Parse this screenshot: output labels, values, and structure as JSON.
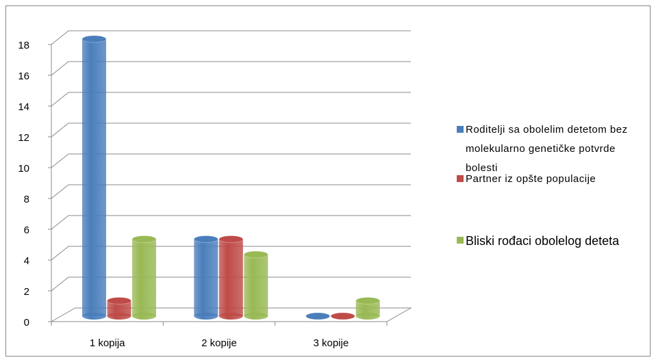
{
  "chart_data": {
    "type": "bar3d",
    "categories": [
      "1 kopija",
      "2 kopije",
      "3 kopije"
    ],
    "series": [
      {
        "name": "Roditelji sa obolelim detetom bez molekularno genetičke potvrde bolesti",
        "color": "#4a7ebb",
        "values": [
          18,
          5,
          0
        ]
      },
      {
        "name": "Partner iz opšte populacije",
        "color": "#be4b48",
        "values": [
          1,
          5,
          0
        ]
      },
      {
        "name": "Bliski rođaci obolelog deteta",
        "color": "#98b954",
        "values": [
          5,
          4,
          1
        ]
      }
    ],
    "ylim": [
      0,
      18
    ],
    "yticks": [
      0,
      2,
      4,
      6,
      8,
      10,
      12,
      14,
      16,
      18
    ],
    "grid": true,
    "legend": "right"
  }
}
